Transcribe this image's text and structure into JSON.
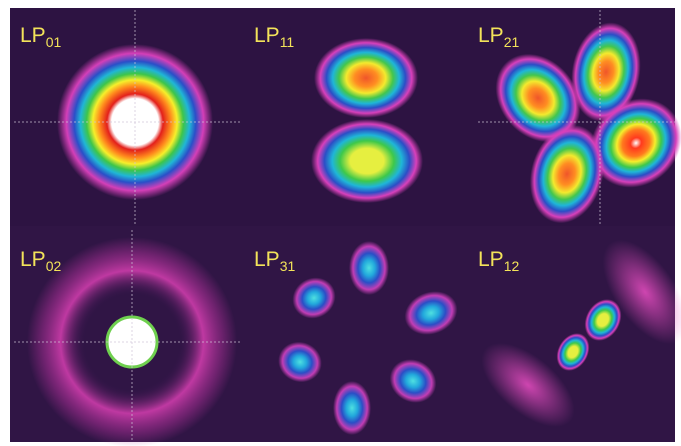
{
  "panels": [
    {
      "label": "LP",
      "subscript": "01"
    },
    {
      "label": "LP",
      "subscript": "11"
    },
    {
      "label": "LP",
      "subscript": "21"
    },
    {
      "label": "LP",
      "subscript": "02"
    },
    {
      "label": "LP",
      "subscript": "31"
    },
    {
      "label": "LP",
      "subscript": "12"
    }
  ]
}
